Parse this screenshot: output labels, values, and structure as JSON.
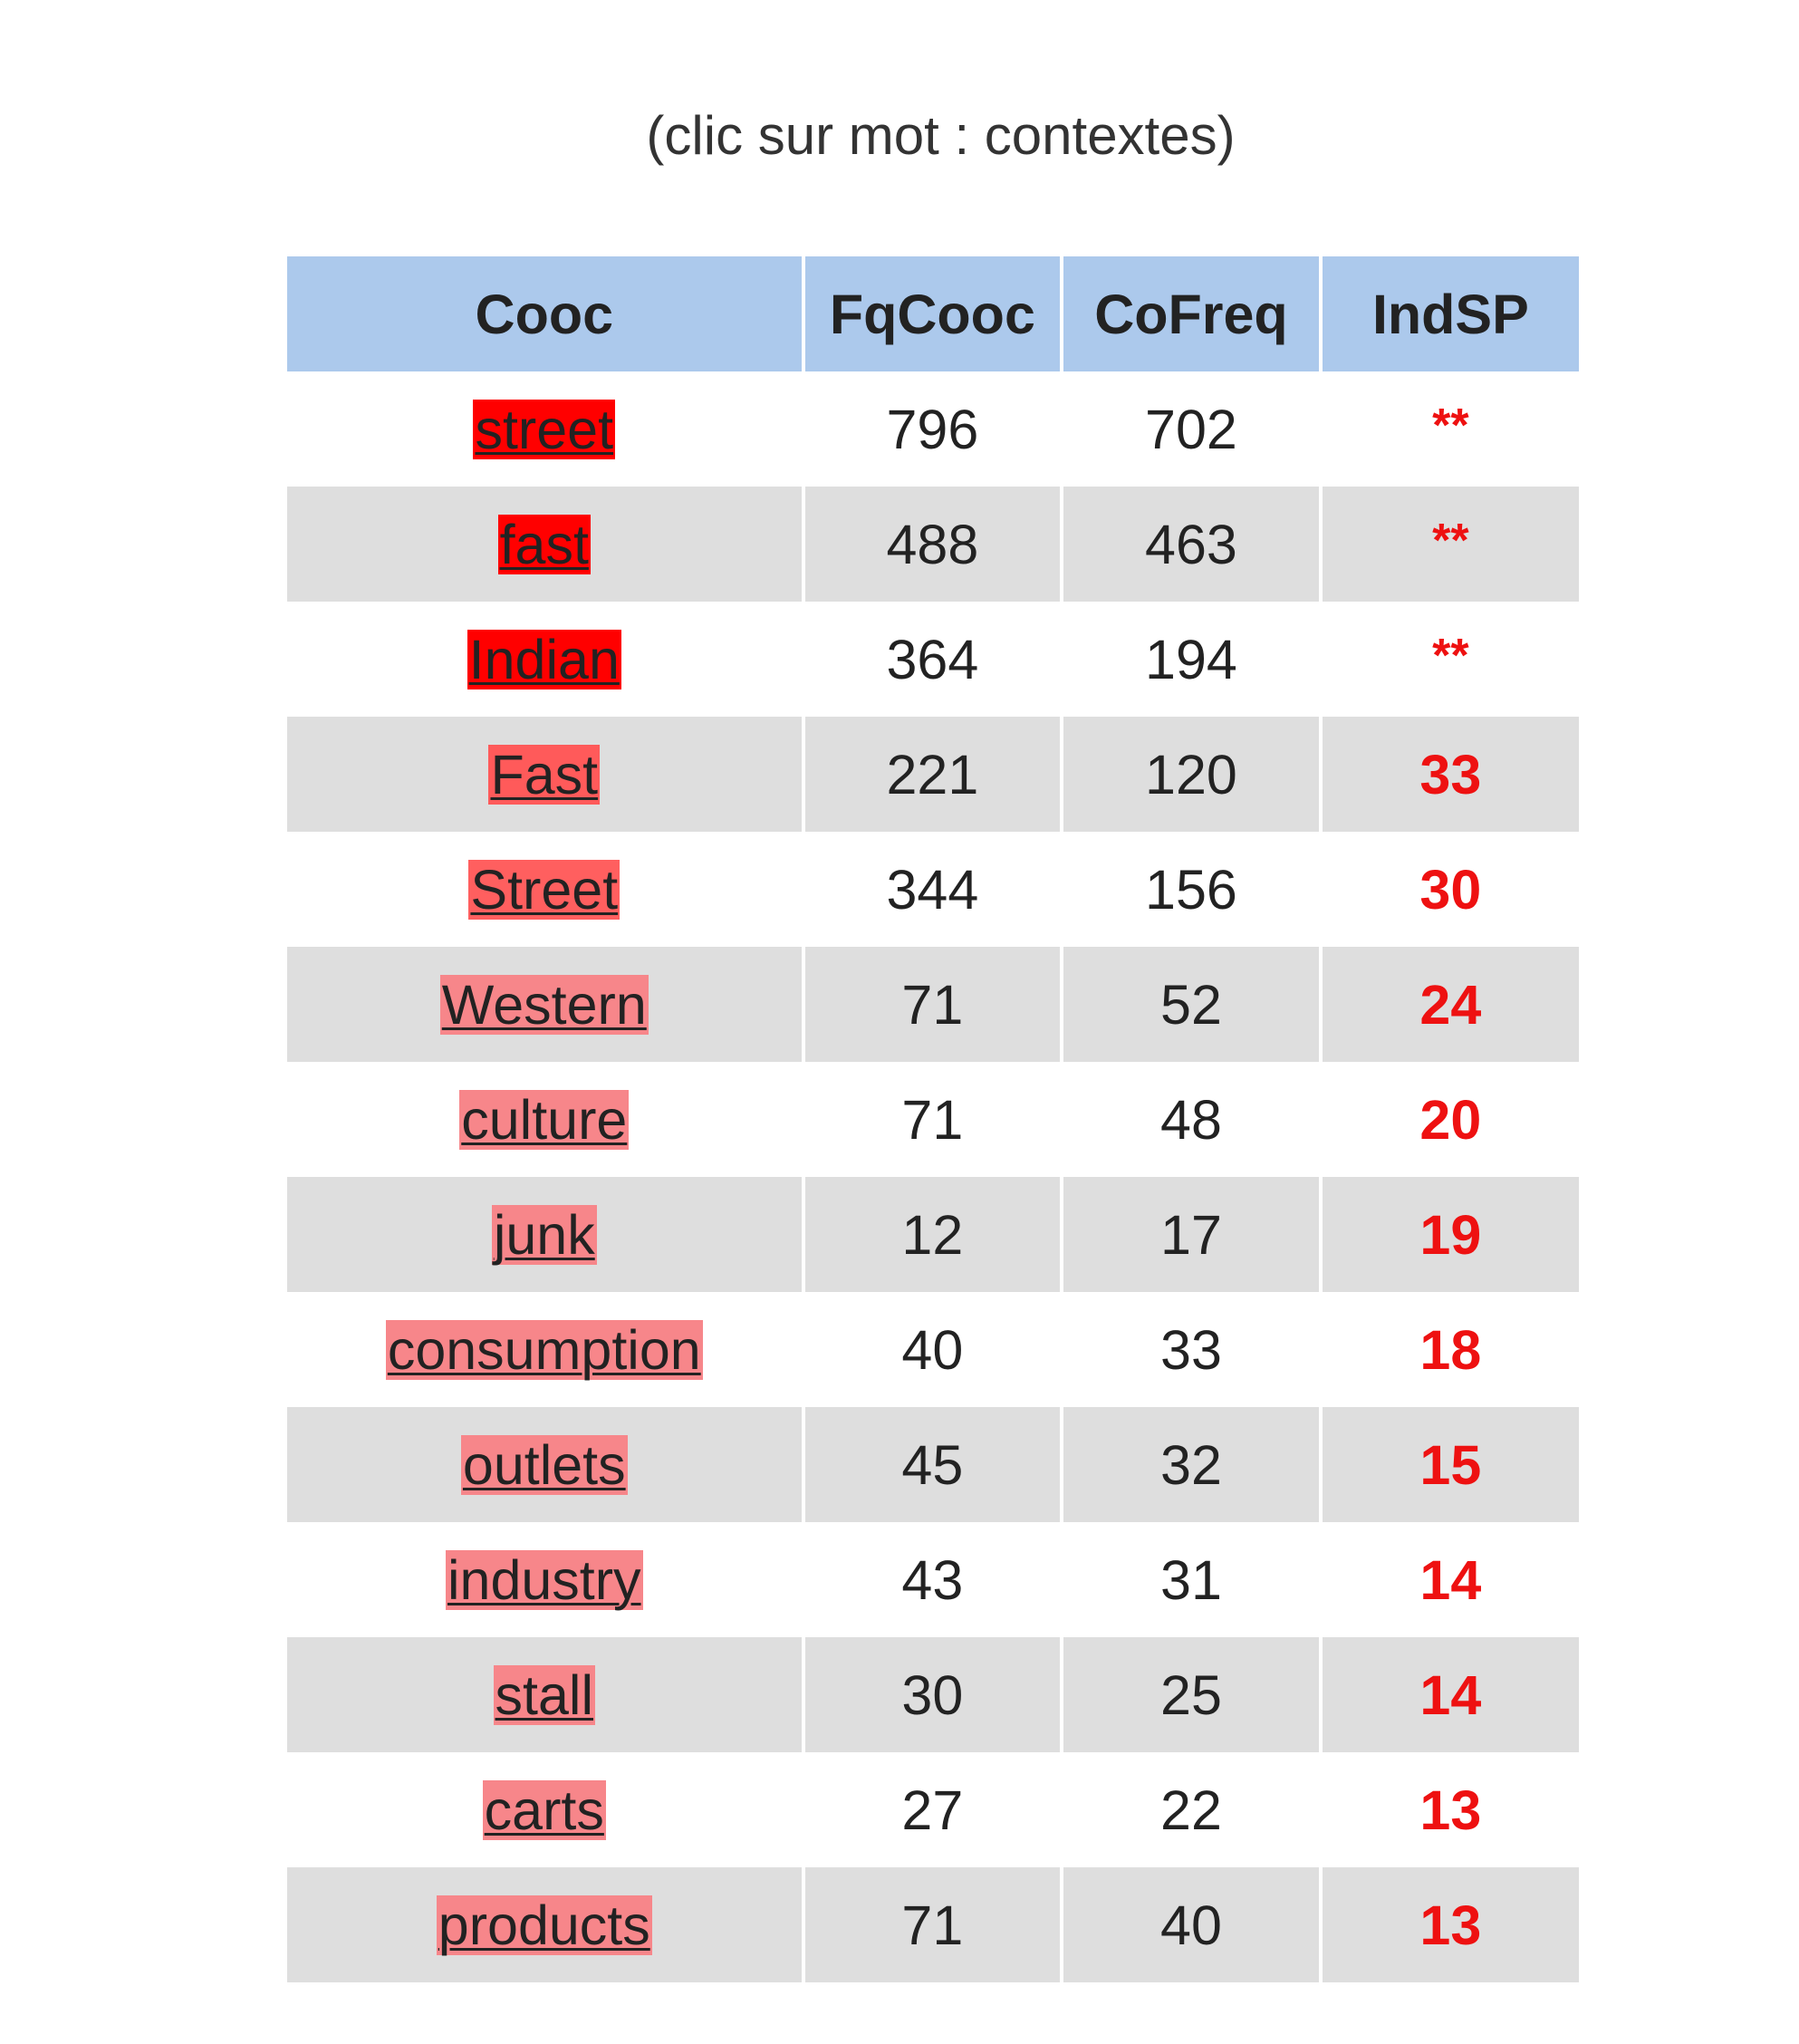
{
  "caption": "(clic sur mot : contextes)",
  "table": {
    "headers": [
      "Cooc",
      "FqCooc",
      "CoFreq",
      "IndSP"
    ],
    "rows": [
      {
        "word": "street",
        "fq": "796",
        "cofreq": "702",
        "ind": "**",
        "highlight": "#ff0000"
      },
      {
        "word": "fast",
        "fq": "488",
        "cofreq": "463",
        "ind": "**",
        "highlight": "#ff0000"
      },
      {
        "word": "Indian",
        "fq": "364",
        "cofreq": "194",
        "ind": "**",
        "highlight": "#ff0000"
      },
      {
        "word": "Fast",
        "fq": "221",
        "cofreq": "120",
        "ind": "33",
        "highlight": "#ff5a5a"
      },
      {
        "word": "Street",
        "fq": "344",
        "cofreq": "156",
        "ind": "30",
        "highlight": "#ff5f5f"
      },
      {
        "word": "Western",
        "fq": "71",
        "cofreq": "52",
        "ind": "24",
        "highlight": "#f7868a"
      },
      {
        "word": "culture",
        "fq": "71",
        "cofreq": "48",
        "ind": "20",
        "highlight": "#f7868a"
      },
      {
        "word": "junk",
        "fq": "12",
        "cofreq": "17",
        "ind": "19",
        "highlight": "#f7868a"
      },
      {
        "word": "consumption",
        "fq": "40",
        "cofreq": "33",
        "ind": "18",
        "highlight": "#f7868a"
      },
      {
        "word": "outlets",
        "fq": "45",
        "cofreq": "32",
        "ind": "15",
        "highlight": "#f7868a"
      },
      {
        "word": "industry",
        "fq": "43",
        "cofreq": "31",
        "ind": "14",
        "highlight": "#f7868a"
      },
      {
        "word": "stall",
        "fq": "30",
        "cofreq": "25",
        "ind": "14",
        "highlight": "#f7868a"
      },
      {
        "word": "carts",
        "fq": "27",
        "cofreq": "22",
        "ind": "13",
        "highlight": "#f7868a"
      },
      {
        "word": "products",
        "fq": "71",
        "cofreq": "40",
        "ind": "13",
        "highlight": "#f7868a"
      }
    ]
  },
  "colors": {
    "header_bg": "#acc9ec",
    "row_alt_bg": "#dedede",
    "indsp_text": "#ee1111"
  }
}
